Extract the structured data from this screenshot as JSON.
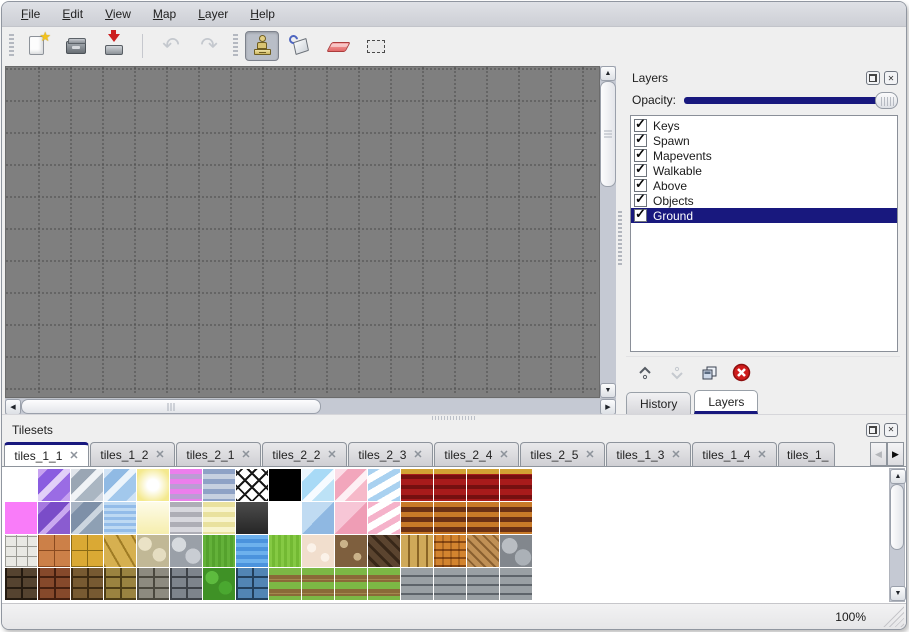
{
  "menu": {
    "items": [
      "File",
      "Edit",
      "View",
      "Map",
      "Layer",
      "Help"
    ]
  },
  "toolbar": {
    "buttons": [
      {
        "name": "new",
        "enabled": true
      },
      {
        "name": "open",
        "enabled": true
      },
      {
        "name": "save",
        "enabled": true
      },
      {
        "name": "undo",
        "enabled": false
      },
      {
        "name": "redo",
        "enabled": false
      },
      {
        "name": "stamp",
        "enabled": true,
        "selected": true
      },
      {
        "name": "fill",
        "enabled": true
      },
      {
        "name": "eraser",
        "enabled": true
      },
      {
        "name": "rect-select",
        "enabled": true
      }
    ]
  },
  "layers_panel": {
    "title": "Layers",
    "opacity_label": "Opacity:",
    "opacity_percent": 100,
    "layers": [
      {
        "name": "Keys",
        "checked": true
      },
      {
        "name": "Spawn",
        "checked": true
      },
      {
        "name": "Mapevents",
        "checked": true
      },
      {
        "name": "Walkable",
        "checked": true
      },
      {
        "name": "Above",
        "checked": true
      },
      {
        "name": "Objects",
        "checked": true
      },
      {
        "name": "Ground",
        "checked": true,
        "selected": true
      }
    ],
    "tabs": [
      {
        "label": "History",
        "active": false
      },
      {
        "label": "Layers",
        "active": true
      }
    ]
  },
  "tilesets_panel": {
    "title": "Tilesets",
    "tabs": [
      {
        "label": "tiles_1_1",
        "active": true
      },
      {
        "label": "tiles_1_2",
        "active": false
      },
      {
        "label": "tiles_2_1",
        "active": false
      },
      {
        "label": "tiles_2_2",
        "active": false
      },
      {
        "label": "tiles_2_3",
        "active": false
      },
      {
        "label": "tiles_2_4",
        "active": false
      },
      {
        "label": "tiles_2_5",
        "active": false
      },
      {
        "label": "tiles_1_3",
        "active": false
      },
      {
        "label": "tiles_1_4",
        "active": false
      },
      {
        "label": "tiles_1_",
        "active": false,
        "truncated": true
      }
    ]
  },
  "tileset_palette": {
    "rows": [
      [
        "#ffffff",
        "linear-gradient(135deg,#c7a2f0 15%,#8a5ce0 15% 40%,#e2d0f8 40% 55%,#9a6ce4 55% 85%,#c7a2f0 85%)",
        "linear-gradient(135deg,#e0e4ea 15%,#9aa6b4 15% 40%,#f0f3f6 40% 55%,#aab6c2 55% 85%,#d4dae2 85%)",
        "linear-gradient(135deg,#d2e4f6 15%,#90bae4 15% 40%,#ecf4fb 40% 55%,#a2c8ec 55% 85%,#cfe2f4 85%)",
        "radial-gradient(circle,#ffffff 25%,#f4e98e 80%)",
        "repeating-linear-gradient(180deg,#ec7eec 0 5px,#bc9cd4 5px 10px)",
        "repeating-linear-gradient(180deg,#8ea2c6 0 5px,#c6d0e0 5px 10px)",
        "repeating-linear-gradient(45deg,#181818 0 2px,transparent 2px 10px),repeating-linear-gradient(-45deg,#181818 0 2px,transparent 2px 10px),#ffffff",
        "#000000",
        "linear-gradient(135deg,#eaf5fd 20%,#a8daf6 20% 50%,#f6fbff 50% 65%,#bce2f6 65%)",
        "linear-gradient(135deg,#fbdde7 20%,#f2a6bc 20% 50%,#fdf0f4 50% 65%,#f6b9c9 65%)",
        "repeating-linear-gradient(150deg,#a9d1f0 0 6px,#ffffff 6px 13px)",
        "linear-gradient(180deg,#d2a234 0 5px,rgba(0,0,0,0) 5px),repeating-linear-gradient(180deg,#a81b1b 0 6px,#751010 6px 10px)",
        "linear-gradient(180deg,#d2a234 0 5px,rgba(0,0,0,0) 5px),repeating-linear-gradient(180deg,#a81b1b 0 6px,#751010 6px 10px)",
        "linear-gradient(180deg,#d2a234 0 5px,rgba(0,0,0,0) 5px),repeating-linear-gradient(180deg,#a81b1b 0 6px,#751010 6px 10px)",
        "linear-gradient(180deg,#d2a234 0 5px,rgba(0,0,0,0) 5px),repeating-linear-gradient(180deg,#a81b1b 0 6px,#751010 6px 10px)"
      ],
      [
        "#f97cf9",
        "linear-gradient(135deg,#a678e0 20%,#7a4cc8 20% 50%,#caaaf0 50% 62%,#8a5cd0 62%)",
        "linear-gradient(135deg,#a8b4c4 20%,#7e90a8 20% 50%,#ccd6e0 50% 62%,#8ea0b4 62%)",
        "repeating-linear-gradient(180deg,#bdd9f3 0 3px,#93bce9 3px 6px)",
        "linear-gradient(180deg,#fdfbe9,#f6eead)",
        "repeating-linear-gradient(180deg,#aeaeb6 0 5px,#d8d8de 5px 10px)",
        "repeating-linear-gradient(180deg,#e9e19e 0 5px,#f8f4cd 5px 10px)",
        "linear-gradient(180deg,#4c4c4c,#262626)",
        "#ffffff",
        "linear-gradient(135deg,#c0dbf2 50%,#8fb8e2 50%)",
        "linear-gradient(135deg,#f7c6d6 50%,#ef9db5 50%)",
        "repeating-linear-gradient(150deg,#f5b2ca 0 6px,#ffffff 6px 13px)",
        "repeating-linear-gradient(180deg,#c87a28 0 5px,#6b3114 5px 10px)",
        "repeating-linear-gradient(180deg,#c87a28 0 5px,#6b3114 5px 10px)",
        "repeating-linear-gradient(180deg,#c87a28 0 5px,#6b3114 5px 10px)",
        "repeating-linear-gradient(180deg,#c87a28 0 5px,#6b3114 5px 10px)"
      ],
      [
        "repeating-linear-gradient(0deg,#9a9a94 0 1px,transparent 1px 10px),repeating-linear-gradient(90deg,#9a9a94 0 1px,transparent 1px 11px),#e9e9e4",
        "repeating-linear-gradient(0deg,#8a4a20 0 1px,transparent 1px 16px),repeating-linear-gradient(90deg,#8a4a20 0 1px,transparent 1px 16px),#cc8048",
        "repeating-linear-gradient(0deg,#8a6a14 0 1px,transparent 1px 16px),repeating-linear-gradient(90deg,#8a6a14 0 1px,transparent 1px 16px),#daa934",
        "repeating-linear-gradient(60deg,#a07c24 0 2px,transparent 2px 13px),#d6b050",
        "radial-gradient(circle at 25% 28%,#eae2c6 20%,transparent 21%),radial-gradient(circle at 70% 62%,#e5ddc1 22%,transparent 23%),#c1b896",
        "radial-gradient(circle at 28% 30%,#d6dade 22%,transparent 23%),radial-gradient(circle at 72% 66%,#c9cdd3 24%,transparent 25%),#9aa0a8",
        "repeating-linear-gradient(90deg,#63b139 0 3px,#55a22d 3px 6px)",
        "repeating-linear-gradient(180deg,#6db1ed 0 4px,#4b93dd 4px 8px)",
        "repeating-linear-gradient(90deg,#85c943 0 3px,#73b933 3px 6px)",
        "radial-gradient(circle at 30% 40%,#fbf2e9 15%,transparent 16%),radial-gradient(circle at 72% 70%,#fbf2e9 13%,transparent 14%),#f1decd",
        "radial-gradient(circle at 28% 28%,#cab289 12%,transparent 13%),radial-gradient(circle at 70% 68%,#cab289 12%,transparent 13%),#7e5f3e",
        "repeating-linear-gradient(45deg,#5b442f 0 6px,#382718 6px 9px)",
        "repeating-linear-gradient(90deg,#cfa959 0 7px,#8a6526 7px 9px)",
        "repeating-linear-gradient(90deg,rgba(60,20,0,.25) 0 2px,transparent 2px 8px),repeating-linear-gradient(180deg,#d3842f 0 6px,#8a4a14 6px 8px)",
        "repeating-linear-gradient(45deg,#c09055 0 5px,#8a6030 5px 7px)",
        "radial-gradient(circle at 30% 34%,#b9bdc2 25%,transparent 26%),radial-gradient(circle at 72% 70%,#abb1b7 25%,transparent 26%),#82878d"
      ],
      [
        "repeating-linear-gradient(0deg,#241a10 0 2px,transparent 2px 11px),repeating-linear-gradient(90deg,#241a10 0 2px,transparent 2px 16px),#554330",
        "repeating-linear-gradient(0deg,#451f0f 0 2px,transparent 2px 11px),repeating-linear-gradient(90deg,#451f0f 0 2px,transparent 2px 16px),#86492b",
        "repeating-linear-gradient(0deg,#3c2a12 0 2px,transparent 2px 11px),repeating-linear-gradient(90deg,#3c2a12 0 2px,transparent 2px 16px),#775a32",
        "repeating-linear-gradient(0deg,#4e3e16 0 2px,transparent 2px 11px),repeating-linear-gradient(90deg,#4e3e16 0 2px,transparent 2px 16px),#9a8340",
        "repeating-linear-gradient(0deg,#4a483e 0 2px,transparent 2px 11px),repeating-linear-gradient(90deg,#4a483e 0 2px,transparent 2px 16px),#8d8b80",
        "repeating-linear-gradient(0deg,#3e4248 0 2px,transparent 2px 11px),repeating-linear-gradient(90deg,#3e4248 0 2px,transparent 2px 16px),#7e848c",
        "radial-gradient(circle at 28% 30%,#5dbb3e 20%,transparent 21%),radial-gradient(circle at 70% 62%,#4aa830 22%,transparent 23%),#3f9126",
        "repeating-linear-gradient(0deg,#23405c 0 2px,transparent 2px 11px),repeating-linear-gradient(90deg,#23405c 0 2px,transparent 2px 16px),#5285b4",
        "repeating-linear-gradient(180deg,#7cb845 0 7px,#8a6a38 7px 11px,#a4884e 11px 12px,#8a6a38 12px 14px)",
        "repeating-linear-gradient(180deg,#7cb845 0 7px,#8a6a38 7px 11px,#a4884e 11px 12px,#8a6a38 12px 14px)",
        "repeating-linear-gradient(180deg,#7cb845 0 7px,#8a6a38 7px 11px,#a4884e 11px 12px,#8a6a38 12px 14px)",
        "repeating-linear-gradient(180deg,#7cb845 0 7px,#8a6a38 7px 11px,#a4884e 11px 12px,#8a6a38 12px 14px)",
        "repeating-linear-gradient(180deg,#9aa0a4 0 7px,#5e646a 7px 9px)",
        "repeating-linear-gradient(180deg,#9aa0a4 0 7px,#5e646a 7px 9px)",
        "repeating-linear-gradient(180deg,#9aa0a4 0 7px,#5e646a 7px 9px)",
        "repeating-linear-gradient(180deg,#9aa0a4 0 7px,#5e646a 7px 9px)"
      ]
    ]
  },
  "status_bar": {
    "zoom_level": "100%"
  },
  "colors": {
    "accent_navy": "#18187e",
    "canvas_gray": "#7f7f7f",
    "eraser_pink": "#ee8585"
  }
}
